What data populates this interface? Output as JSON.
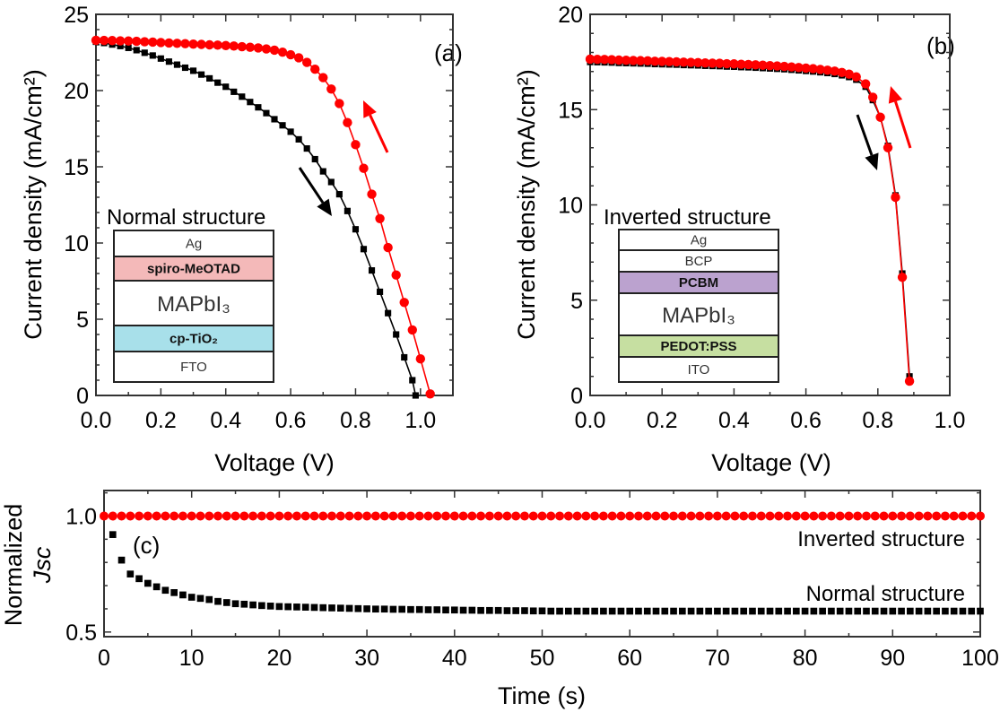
{
  "colors": {
    "reverse": "#ff0000",
    "forward": "#000000",
    "spiro": "#f4b9b9",
    "tio2": "#a8e0ea",
    "pcbm": "#bba2cf",
    "pedot": "#c6dfa1"
  },
  "chart_data": [
    {
      "type": "line",
      "panel_label": "(a)",
      "xlabel": "Voltage (V)",
      "ylabel": "Current density (mA/cm²)",
      "xlim": [
        0,
        1.1
      ],
      "ylim": [
        0,
        25
      ],
      "xticks": [
        "0.0",
        "0.2",
        "0.4",
        "0.6",
        "0.8",
        "1.0"
      ],
      "yticks": [
        "0",
        "5",
        "10",
        "15",
        "20",
        "25"
      ],
      "inset": {
        "title": "Normal structure",
        "layers": [
          "Ag",
          "spiro-MeOTAD",
          "MAPbI₃",
          "cp-TiO₂",
          "FTO"
        ]
      },
      "series": [
        {
          "marker": "square",
          "color": "#000000",
          "arrow": "down",
          "x": [
            0,
            0.025,
            0.05,
            0.075,
            0.1,
            0.125,
            0.15,
            0.175,
            0.2,
            0.225,
            0.25,
            0.275,
            0.3,
            0.325,
            0.35,
            0.375,
            0.4,
            0.425,
            0.45,
            0.475,
            0.5,
            0.525,
            0.55,
            0.575,
            0.6,
            0.625,
            0.65,
            0.675,
            0.7,
            0.725,
            0.75,
            0.775,
            0.8,
            0.825,
            0.85,
            0.875,
            0.9,
            0.925,
            0.95,
            0.975,
            0.985
          ],
          "y": [
            23.2,
            23.12,
            23.02,
            22.92,
            22.8,
            22.65,
            22.48,
            22.3,
            22.1,
            21.9,
            21.7,
            21.5,
            21.3,
            21.05,
            20.8,
            20.52,
            20.25,
            19.92,
            19.6,
            19.25,
            18.9,
            18.52,
            18.12,
            17.72,
            17.3,
            16.8,
            16.2,
            15.5,
            14.7,
            14.0,
            13.2,
            12.1,
            10.9,
            9.6,
            8.2,
            6.8,
            5.4,
            4.0,
            2.5,
            1.0,
            0
          ]
        },
        {
          "marker": "circle",
          "color": "#ff0000",
          "arrow": "up",
          "x": [
            0,
            0.025,
            0.05,
            0.075,
            0.1,
            0.125,
            0.15,
            0.175,
            0.2,
            0.225,
            0.25,
            0.275,
            0.3,
            0.325,
            0.35,
            0.375,
            0.4,
            0.425,
            0.45,
            0.475,
            0.5,
            0.525,
            0.55,
            0.575,
            0.6,
            0.625,
            0.65,
            0.675,
            0.7,
            0.725,
            0.75,
            0.775,
            0.8,
            0.825,
            0.85,
            0.875,
            0.9,
            0.925,
            0.95,
            0.975,
            1.0,
            1.03
          ],
          "y": [
            23.3,
            23.29,
            23.28,
            23.26,
            23.25,
            23.23,
            23.2,
            23.18,
            23.15,
            23.12,
            23.1,
            23.08,
            23.05,
            23.03,
            23.0,
            22.98,
            22.95,
            22.92,
            22.88,
            22.84,
            22.8,
            22.73,
            22.65,
            22.52,
            22.35,
            22.15,
            21.85,
            21.4,
            20.85,
            20.1,
            19.15,
            17.9,
            16.45,
            14.9,
            13.2,
            11.6,
            9.7,
            7.9,
            6.1,
            4.3,
            2.4,
            0.1
          ]
        }
      ]
    },
    {
      "type": "line",
      "panel_label": "(b)",
      "xlabel": "Voltage (V)",
      "ylabel": "Current density (mA/cm²)",
      "xlim": [
        0,
        1.0
      ],
      "ylim": [
        0,
        20
      ],
      "xticks": [
        "0.0",
        "0.2",
        "0.4",
        "0.6",
        "0.8",
        "1.0"
      ],
      "yticks": [
        "0",
        "5",
        "10",
        "15",
        "20"
      ],
      "inset": {
        "title": "Inverted structure",
        "layers": [
          "Ag",
          "BCP",
          "PCBM",
          "MAPbI₃",
          "PEDOT:PSS",
          "ITO"
        ]
      },
      "series": [
        {
          "marker": "square",
          "color": "#000000",
          "arrow": "down",
          "x": [
            0,
            0.02,
            0.04,
            0.06,
            0.08,
            0.1,
            0.12,
            0.14,
            0.16,
            0.18,
            0.2,
            0.22,
            0.24,
            0.26,
            0.28,
            0.3,
            0.32,
            0.34,
            0.36,
            0.38,
            0.4,
            0.42,
            0.44,
            0.46,
            0.48,
            0.5,
            0.52,
            0.54,
            0.56,
            0.58,
            0.6,
            0.62,
            0.64,
            0.66,
            0.68,
            0.7,
            0.72,
            0.74,
            0.766,
            0.786,
            0.807,
            0.828,
            0.849,
            0.868,
            0.888
          ],
          "y": [
            17.5,
            17.49,
            17.48,
            17.47,
            17.45,
            17.44,
            17.43,
            17.42,
            17.41,
            17.39,
            17.38,
            17.37,
            17.36,
            17.34,
            17.33,
            17.32,
            17.3,
            17.29,
            17.28,
            17.26,
            17.25,
            17.23,
            17.22,
            17.2,
            17.18,
            17.16,
            17.14,
            17.12,
            17.09,
            17.06,
            17.03,
            17.0,
            16.96,
            16.92,
            16.87,
            16.8,
            16.71,
            16.57,
            16.2,
            15.5,
            14.6,
            13.1,
            10.5,
            6.4,
            1.0
          ]
        },
        {
          "marker": "circle",
          "color": "#ff0000",
          "arrow": "up",
          "x": [
            0,
            0.02,
            0.04,
            0.06,
            0.08,
            0.1,
            0.12,
            0.14,
            0.16,
            0.18,
            0.2,
            0.22,
            0.24,
            0.26,
            0.28,
            0.3,
            0.32,
            0.34,
            0.36,
            0.38,
            0.4,
            0.42,
            0.44,
            0.46,
            0.48,
            0.5,
            0.52,
            0.54,
            0.56,
            0.58,
            0.6,
            0.62,
            0.64,
            0.66,
            0.68,
            0.7,
            0.72,
            0.74,
            0.766,
            0.786,
            0.807,
            0.828,
            0.849,
            0.868,
            0.888
          ],
          "y": [
            17.65,
            17.64,
            17.63,
            17.62,
            17.6,
            17.59,
            17.58,
            17.57,
            17.56,
            17.54,
            17.53,
            17.52,
            17.51,
            17.49,
            17.48,
            17.47,
            17.45,
            17.44,
            17.43,
            17.41,
            17.4,
            17.38,
            17.37,
            17.35,
            17.33,
            17.31,
            17.29,
            17.27,
            17.24,
            17.21,
            17.18,
            17.15,
            17.11,
            17.07,
            17.02,
            16.95,
            16.86,
            16.72,
            16.35,
            15.65,
            14.6,
            13.0,
            10.4,
            6.2,
            0.75
          ]
        }
      ]
    },
    {
      "type": "scatter",
      "panel_label": "(c)",
      "xlabel": "Time (s)",
      "ylabel": [
        "Normalized",
        "Jsc"
      ],
      "xlim": [
        0,
        100
      ],
      "ylim": [
        0.48,
        1.11
      ],
      "xticks": [
        "0",
        "10",
        "20",
        "30",
        "40",
        "50",
        "60",
        "70",
        "80",
        "90",
        "100"
      ],
      "yticks": [
        "0.5",
        "1.0"
      ],
      "series": [
        {
          "name": "Inverted structure",
          "marker": "circle",
          "color": "#ff0000",
          "x": [
            0,
            1,
            2,
            3,
            4,
            5,
            6,
            7,
            8,
            9,
            10,
            11,
            12,
            13,
            14,
            15,
            16,
            17,
            18,
            19,
            20,
            21,
            22,
            23,
            24,
            25,
            26,
            27,
            28,
            29,
            30,
            31,
            32,
            33,
            34,
            35,
            36,
            37,
            38,
            39,
            40,
            41,
            42,
            43,
            44,
            45,
            46,
            47,
            48,
            49,
            50,
            51,
            52,
            53,
            54,
            55,
            56,
            57,
            58,
            59,
            60,
            61,
            62,
            63,
            64,
            65,
            66,
            67,
            68,
            69,
            70,
            71,
            72,
            73,
            74,
            75,
            76,
            77,
            78,
            79,
            80,
            81,
            82,
            83,
            84,
            85,
            86,
            87,
            88,
            89,
            90,
            91,
            92,
            93,
            94,
            95,
            96,
            97,
            98,
            99,
            100
          ],
          "y": [
            1,
            1,
            1,
            1,
            1,
            1,
            1,
            1,
            1,
            1,
            1,
            1,
            1,
            1,
            1,
            1,
            1,
            1,
            1,
            1,
            1,
            1,
            1,
            1,
            1,
            1,
            1,
            1,
            1,
            1,
            1,
            1,
            1,
            1,
            1,
            1,
            1,
            1,
            1,
            1,
            1,
            1,
            1,
            1,
            1,
            1,
            1,
            1,
            1,
            1,
            1,
            1,
            1,
            1,
            1,
            1,
            1,
            1,
            1,
            1,
            1,
            1,
            1,
            1,
            1,
            1,
            1,
            1,
            1,
            1,
            1,
            1,
            1,
            1,
            1,
            1,
            1,
            1,
            1,
            1,
            1,
            1,
            1,
            1,
            1,
            1,
            1,
            1,
            1,
            1,
            1,
            1,
            1,
            1,
            1,
            1,
            1,
            1,
            1,
            1,
            1
          ]
        },
        {
          "name": "Normal structure",
          "marker": "square",
          "color": "#000000",
          "x": [
            1,
            2,
            3,
            4,
            5,
            6,
            7,
            8,
            9,
            10,
            11,
            12,
            13,
            14,
            15,
            16,
            17,
            18,
            19,
            20,
            21,
            22,
            23,
            24,
            25,
            26,
            27,
            28,
            29,
            30,
            31,
            32,
            33,
            34,
            35,
            36,
            37,
            38,
            39,
            40,
            41,
            42,
            43,
            44,
            45,
            46,
            47,
            48,
            49,
            50,
            51,
            52,
            53,
            54,
            55,
            56,
            57,
            58,
            59,
            60,
            61,
            62,
            63,
            64,
            65,
            66,
            67,
            68,
            69,
            70,
            71,
            72,
            73,
            74,
            75,
            76,
            77,
            78,
            79,
            80,
            81,
            82,
            83,
            84,
            85,
            86,
            87,
            88,
            89,
            90,
            91,
            92,
            93,
            94,
            95,
            96,
            97,
            98,
            99,
            100
          ],
          "y": [
            0.92,
            0.81,
            0.75,
            0.73,
            0.71,
            0.695,
            0.68,
            0.67,
            0.66,
            0.65,
            0.645,
            0.64,
            0.632,
            0.627,
            0.622,
            0.62,
            0.617,
            0.614,
            0.612,
            0.61,
            0.609,
            0.608,
            0.607,
            0.606,
            0.605,
            0.604,
            0.603,
            0.602,
            0.601,
            0.6,
            0.599,
            0.599,
            0.598,
            0.598,
            0.597,
            0.597,
            0.596,
            0.596,
            0.595,
            0.595,
            0.594,
            0.594,
            0.593,
            0.593,
            0.593,
            0.592,
            0.592,
            0.592,
            0.591,
            0.591,
            0.59,
            0.59,
            0.59,
            0.59,
            0.59,
            0.59,
            0.59,
            0.59,
            0.59,
            0.59,
            0.59,
            0.59,
            0.59,
            0.59,
            0.59,
            0.59,
            0.59,
            0.59,
            0.59,
            0.59,
            0.59,
            0.59,
            0.59,
            0.59,
            0.59,
            0.59,
            0.59,
            0.59,
            0.59,
            0.59,
            0.59,
            0.59,
            0.59,
            0.59,
            0.59,
            0.59,
            0.59,
            0.59,
            0.59,
            0.59,
            0.59,
            0.59,
            0.59,
            0.59,
            0.59,
            0.59,
            0.59,
            0.59,
            0.59,
            0.59
          ]
        }
      ]
    }
  ]
}
